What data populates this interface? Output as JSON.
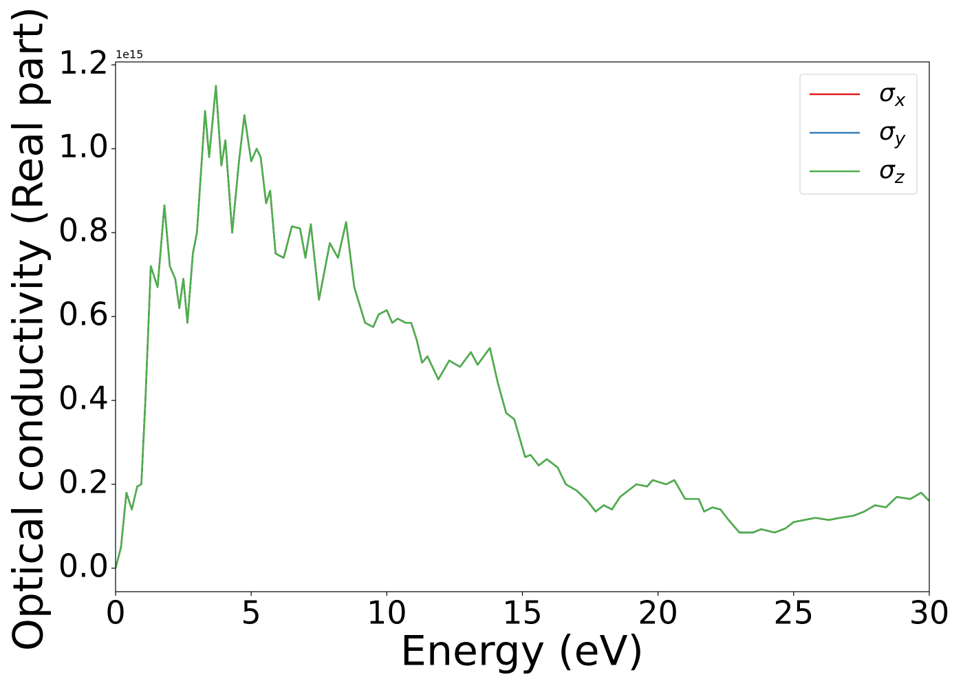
{
  "chart_data": {
    "type": "line",
    "xlabel": "Energy (eV)",
    "ylabel": "Optical conductivity (Real part)",
    "y_offset_text": "1e15",
    "x": [
      0,
      0.2,
      0.4,
      0.6,
      0.8,
      0.95,
      1.1,
      1.3,
      1.55,
      1.8,
      2.0,
      2.2,
      2.35,
      2.5,
      2.65,
      2.85,
      3.0,
      3.3,
      3.45,
      3.7,
      3.9,
      4.05,
      4.3,
      4.55,
      4.75,
      5.0,
      5.2,
      5.35,
      5.55,
      5.7,
      5.9,
      6.2,
      6.5,
      6.8,
      7.0,
      7.2,
      7.5,
      7.9,
      8.2,
      8.5,
      8.8,
      9.2,
      9.5,
      9.7,
      10.0,
      10.2,
      10.4,
      10.7,
      10.9,
      11.1,
      11.3,
      11.5,
      11.9,
      12.3,
      12.7,
      13.1,
      13.35,
      13.8,
      14.1,
      14.4,
      14.7,
      15.1,
      15.3,
      15.6,
      15.9,
      16.3,
      16.6,
      17.0,
      17.4,
      17.7,
      18.0,
      18.3,
      18.6,
      19.2,
      19.6,
      19.8,
      20.3,
      20.6,
      21.0,
      21.5,
      21.7,
      22.0,
      22.3,
      22.6,
      23.0,
      23.5,
      23.8,
      24.3,
      24.7,
      25.0,
      25.4,
      25.8,
      26.3,
      26.7,
      27.2,
      27.6,
      28.0,
      28.4,
      28.8,
      29.3,
      29.7,
      30.0
    ],
    "series": [
      {
        "name": "σx",
        "color": "#e41a1c",
        "values": [
          0.0,
          0.05,
          0.18,
          0.14,
          0.195,
          0.2,
          0.4,
          0.72,
          0.67,
          0.865,
          0.72,
          0.69,
          0.62,
          0.69,
          0.585,
          0.75,
          0.8,
          1.09,
          0.98,
          1.15,
          0.96,
          1.02,
          0.8,
          0.97,
          1.08,
          0.97,
          1.0,
          0.98,
          0.87,
          0.9,
          0.75,
          0.74,
          0.815,
          0.81,
          0.74,
          0.82,
          0.64,
          0.775,
          0.74,
          0.825,
          0.67,
          0.585,
          0.575,
          0.605,
          0.615,
          0.585,
          0.595,
          0.585,
          0.585,
          0.545,
          0.49,
          0.505,
          0.45,
          0.495,
          0.48,
          0.515,
          0.485,
          0.525,
          0.44,
          0.37,
          0.355,
          0.265,
          0.27,
          0.245,
          0.26,
          0.24,
          0.2,
          0.185,
          0.16,
          0.135,
          0.15,
          0.14,
          0.17,
          0.2,
          0.195,
          0.21,
          0.2,
          0.21,
          0.165,
          0.165,
          0.135,
          0.145,
          0.14,
          0.115,
          0.085,
          0.085,
          0.093,
          0.085,
          0.095,
          0.11,
          0.115,
          0.12,
          0.115,
          0.12,
          0.125,
          0.135,
          0.15,
          0.145,
          0.17,
          0.165,
          0.18,
          0.16
        ]
      },
      {
        "name": "σy",
        "color": "#377eb8",
        "values": [
          0.0,
          0.05,
          0.18,
          0.14,
          0.195,
          0.2,
          0.4,
          0.72,
          0.67,
          0.865,
          0.72,
          0.69,
          0.62,
          0.69,
          0.585,
          0.75,
          0.8,
          1.09,
          0.98,
          1.15,
          0.96,
          1.02,
          0.8,
          0.97,
          1.08,
          0.97,
          1.0,
          0.98,
          0.87,
          0.9,
          0.75,
          0.74,
          0.815,
          0.81,
          0.74,
          0.82,
          0.64,
          0.775,
          0.74,
          0.825,
          0.67,
          0.585,
          0.575,
          0.605,
          0.615,
          0.585,
          0.595,
          0.585,
          0.585,
          0.545,
          0.49,
          0.505,
          0.45,
          0.495,
          0.48,
          0.515,
          0.485,
          0.525,
          0.44,
          0.37,
          0.355,
          0.265,
          0.27,
          0.245,
          0.26,
          0.24,
          0.2,
          0.185,
          0.16,
          0.135,
          0.15,
          0.14,
          0.17,
          0.2,
          0.195,
          0.21,
          0.2,
          0.21,
          0.165,
          0.165,
          0.135,
          0.145,
          0.14,
          0.115,
          0.085,
          0.085,
          0.093,
          0.085,
          0.095,
          0.11,
          0.115,
          0.12,
          0.115,
          0.12,
          0.125,
          0.135,
          0.15,
          0.145,
          0.17,
          0.165,
          0.18,
          0.16
        ]
      },
      {
        "name": "σz",
        "color": "#4daf4a",
        "values": [
          0.0,
          0.05,
          0.18,
          0.14,
          0.195,
          0.2,
          0.4,
          0.72,
          0.67,
          0.865,
          0.72,
          0.69,
          0.62,
          0.69,
          0.585,
          0.75,
          0.8,
          1.09,
          0.98,
          1.15,
          0.96,
          1.02,
          0.8,
          0.97,
          1.08,
          0.97,
          1.0,
          0.98,
          0.87,
          0.9,
          0.75,
          0.74,
          0.815,
          0.81,
          0.74,
          0.82,
          0.64,
          0.775,
          0.74,
          0.825,
          0.67,
          0.585,
          0.575,
          0.605,
          0.615,
          0.585,
          0.595,
          0.585,
          0.585,
          0.545,
          0.49,
          0.505,
          0.45,
          0.495,
          0.48,
          0.515,
          0.485,
          0.525,
          0.44,
          0.37,
          0.355,
          0.265,
          0.27,
          0.245,
          0.26,
          0.24,
          0.2,
          0.185,
          0.16,
          0.135,
          0.15,
          0.14,
          0.17,
          0.2,
          0.195,
          0.21,
          0.2,
          0.21,
          0.165,
          0.165,
          0.135,
          0.145,
          0.14,
          0.115,
          0.085,
          0.085,
          0.093,
          0.085,
          0.095,
          0.11,
          0.115,
          0.12,
          0.115,
          0.12,
          0.125,
          0.135,
          0.15,
          0.145,
          0.17,
          0.165,
          0.18,
          0.16
        ]
      }
    ],
    "xlim": [
      0,
      30
    ],
    "xticks": [
      0,
      5,
      10,
      15,
      20,
      25,
      30
    ],
    "ylim": [
      -0.056,
      1.207
    ],
    "yticks": [
      {
        "value": 0,
        "label": "0.0"
      },
      0.2,
      0.4,
      0.6,
      0.8,
      {
        "value": 1,
        "label": "1.0"
      },
      1.2
    ],
    "legend": "upper right",
    "grid": false
  }
}
